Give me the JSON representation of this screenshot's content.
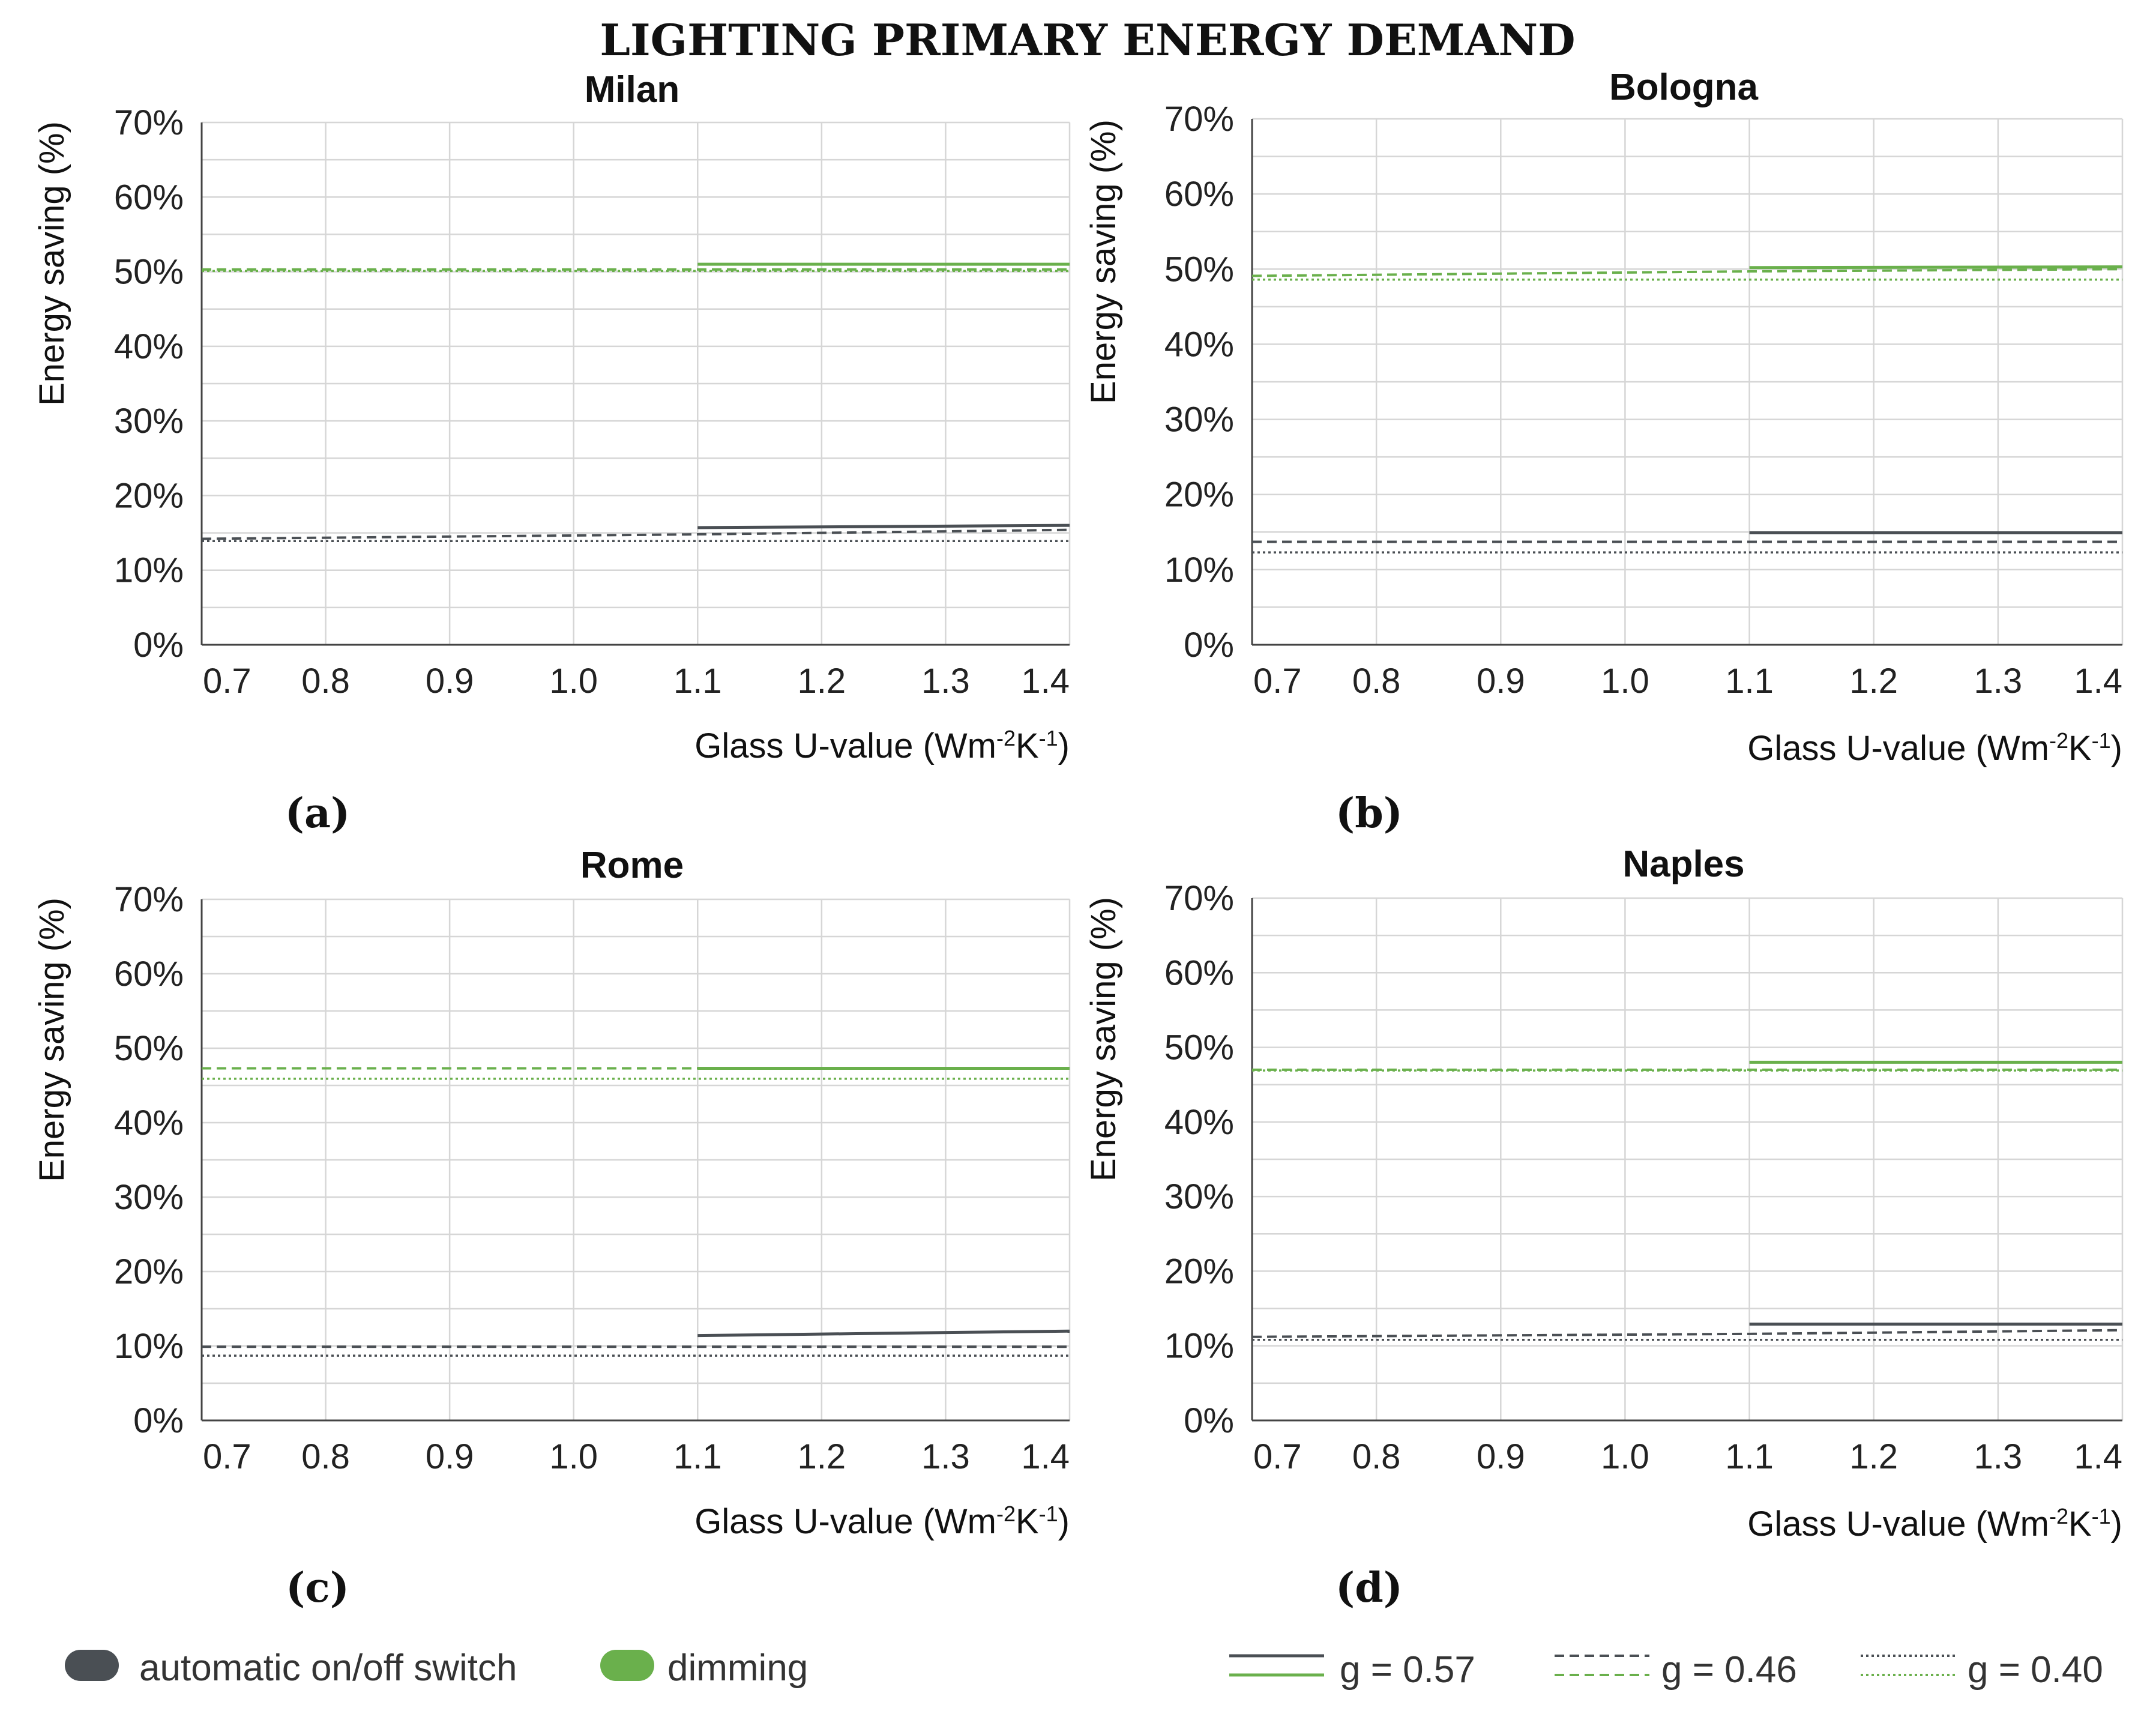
{
  "figure_title": "LIGHTING PRIMARY ENERGY DEMAND",
  "colors": {
    "automatic": "#4a4f54",
    "dimming": "#6ab04c"
  },
  "legend": {
    "control_types": [
      {
        "label": "automatic on/off switch",
        "color": "#4a4f54"
      },
      {
        "label": "dimming",
        "color": "#6ab04c"
      }
    ],
    "g_values": [
      {
        "label": "g = 0.57",
        "dash": "solid"
      },
      {
        "label": "g = 0.46",
        "dash": "dashed"
      },
      {
        "label": "g = 0.40",
        "dash": "dotted"
      }
    ]
  },
  "chart_data": [
    {
      "type": "line",
      "panel": "(a)",
      "title": "Milan",
      "xlabel": "Glass U-value (Wm",
      "xlabel_sup1": "-2",
      "xlabel_mid": "K",
      "xlabel_sup2": "-1",
      "xlabel_end": ")",
      "ylabel": "Energy saving (%)",
      "x_ticks": [
        "0.7",
        "0.8",
        "0.9",
        "1.0",
        "1.1",
        "1.2",
        "1.3",
        "1.4"
      ],
      "y_ticks": [
        "0%",
        "10%",
        "20%",
        "30%",
        "40%",
        "50%",
        "60%",
        "70%"
      ],
      "xlim": [
        0.7,
        1.4
      ],
      "ylim": [
        0,
        70
      ],
      "series": [
        {
          "name": "dimming g = 0.57",
          "control": "dimming",
          "g": "0.57",
          "x": [
            1.1,
            1.4
          ],
          "y": [
            51.0,
            51.0
          ]
        },
        {
          "name": "dimming g = 0.46",
          "control": "dimming",
          "g": "0.46",
          "x": [
            0.7,
            1.4
          ],
          "y": [
            50.3,
            50.3
          ]
        },
        {
          "name": "dimming g = 0.40",
          "control": "dimming",
          "g": "0.40",
          "x": [
            0.7,
            1.4
          ],
          "y": [
            50.1,
            50.1
          ]
        },
        {
          "name": "automatic g = 0.57",
          "control": "automatic",
          "g": "0.57",
          "x": [
            1.1,
            1.4
          ],
          "y": [
            15.7,
            16.0
          ]
        },
        {
          "name": "automatic g = 0.46",
          "control": "automatic",
          "g": "0.46",
          "x": [
            0.7,
            1.1,
            1.4
          ],
          "y": [
            14.2,
            14.8,
            15.4
          ]
        },
        {
          "name": "automatic g = 0.40",
          "control": "automatic",
          "g": "0.40",
          "x": [
            0.7,
            1.4
          ],
          "y": [
            13.9,
            13.9
          ]
        }
      ]
    },
    {
      "type": "line",
      "panel": "(b)",
      "title": "Bologna",
      "xlabel": "Glass U-value (Wm",
      "xlabel_sup1": "-2",
      "xlabel_mid": "K",
      "xlabel_sup2": "-1",
      "xlabel_end": ")",
      "ylabel": "Energy saving (%)",
      "x_ticks": [
        "0.7",
        "0.8",
        "0.9",
        "1.0",
        "1.1",
        "1.2",
        "1.3",
        "1.4"
      ],
      "y_ticks": [
        "0%",
        "10%",
        "20%",
        "30%",
        "40%",
        "50%",
        "60%",
        "70%"
      ],
      "xlim": [
        0.7,
        1.4
      ],
      "ylim": [
        0,
        70
      ],
      "series": [
        {
          "name": "dimming g = 0.57",
          "control": "dimming",
          "g": "0.57",
          "x": [
            1.1,
            1.4
          ],
          "y": [
            50.2,
            50.3
          ]
        },
        {
          "name": "dimming g = 0.46",
          "control": "dimming",
          "g": "0.46",
          "x": [
            0.7,
            1.1,
            1.4
          ],
          "y": [
            49.1,
            49.7,
            50.0
          ]
        },
        {
          "name": "dimming g = 0.40",
          "control": "dimming",
          "g": "0.40",
          "x": [
            0.7,
            1.4
          ],
          "y": [
            48.6,
            48.6
          ]
        },
        {
          "name": "automatic g = 0.57",
          "control": "automatic",
          "g": "0.57",
          "x": [
            1.1,
            1.4
          ],
          "y": [
            14.9,
            14.9
          ]
        },
        {
          "name": "automatic g = 0.46",
          "control": "automatic",
          "g": "0.46",
          "x": [
            0.7,
            1.4
          ],
          "y": [
            13.7,
            13.7
          ]
        },
        {
          "name": "automatic g = 0.40",
          "control": "automatic",
          "g": "0.40",
          "x": [
            0.7,
            1.4
          ],
          "y": [
            12.3,
            12.3
          ]
        }
      ]
    },
    {
      "type": "line",
      "panel": "(c)",
      "title": "Rome",
      "xlabel": "Glass U-value (Wm",
      "xlabel_sup1": "-2",
      "xlabel_mid": "K",
      "xlabel_sup2": "-1",
      "xlabel_end": ")",
      "ylabel": "Energy saving (%)",
      "x_ticks": [
        "0.7",
        "0.8",
        "0.9",
        "1.0",
        "1.1",
        "1.2",
        "1.3",
        "1.4"
      ],
      "y_ticks": [
        "0%",
        "10%",
        "20%",
        "30%",
        "40%",
        "50%",
        "60%",
        "70%"
      ],
      "xlim": [
        0.7,
        1.4
      ],
      "ylim": [
        0,
        70
      ],
      "series": [
        {
          "name": "dimming g = 0.57",
          "control": "dimming",
          "g": "0.57",
          "x": [
            1.1,
            1.4
          ],
          "y": [
            47.3,
            47.3
          ]
        },
        {
          "name": "dimming g = 0.46",
          "control": "dimming",
          "g": "0.46",
          "x": [
            0.7,
            1.4
          ],
          "y": [
            47.3,
            47.3
          ]
        },
        {
          "name": "dimming g = 0.40",
          "control": "dimming",
          "g": "0.40",
          "x": [
            0.7,
            1.4
          ],
          "y": [
            45.9,
            45.9
          ]
        },
        {
          "name": "automatic g = 0.57",
          "control": "automatic",
          "g": "0.57",
          "x": [
            1.1,
            1.4
          ],
          "y": [
            11.4,
            12.0
          ]
        },
        {
          "name": "automatic g = 0.46",
          "control": "automatic",
          "g": "0.46",
          "x": [
            0.7,
            1.4
          ],
          "y": [
            9.9,
            9.9
          ]
        },
        {
          "name": "automatic g = 0.40",
          "control": "automatic",
          "g": "0.40",
          "x": [
            0.7,
            1.4
          ],
          "y": [
            8.7,
            8.7
          ]
        }
      ]
    },
    {
      "type": "line",
      "panel": "(d)",
      "title": "Naples",
      "xlabel": "Glass U-value (Wm",
      "xlabel_sup1": "-2",
      "xlabel_mid": "K",
      "xlabel_sup2": "-1",
      "xlabel_end": ")",
      "ylabel": "Energy saving (%)",
      "x_ticks": [
        "0.7",
        "0.8",
        "0.9",
        "1.0",
        "1.1",
        "1.2",
        "1.3",
        "1.4"
      ],
      "y_ticks": [
        "0%",
        "10%",
        "20%",
        "30%",
        "40%",
        "50%",
        "60%",
        "70%"
      ],
      "xlim": [
        0.7,
        1.4
      ],
      "ylim": [
        0,
        70
      ],
      "series": [
        {
          "name": "dimming g = 0.57",
          "control": "dimming",
          "g": "0.57",
          "x": [
            1.1,
            1.4
          ],
          "y": [
            48.0,
            48.0
          ]
        },
        {
          "name": "dimming g = 0.46",
          "control": "dimming",
          "g": "0.46",
          "x": [
            0.7,
            1.4
          ],
          "y": [
            47.0,
            47.0
          ]
        },
        {
          "name": "dimming g = 0.40",
          "control": "dimming",
          "g": "0.40",
          "x": [
            0.7,
            1.4
          ],
          "y": [
            46.9,
            46.9
          ]
        },
        {
          "name": "automatic g = 0.57",
          "control": "automatic",
          "g": "0.57",
          "x": [
            1.1,
            1.4
          ],
          "y": [
            12.9,
            12.9
          ]
        },
        {
          "name": "automatic g = 0.46",
          "control": "automatic",
          "g": "0.46",
          "x": [
            0.7,
            1.1,
            1.4
          ],
          "y": [
            11.2,
            11.6,
            12.1
          ]
        },
        {
          "name": "automatic g = 0.40",
          "control": "automatic",
          "g": "0.40",
          "x": [
            0.7,
            1.4
          ],
          "y": [
            10.8,
            10.8
          ]
        }
      ]
    }
  ]
}
